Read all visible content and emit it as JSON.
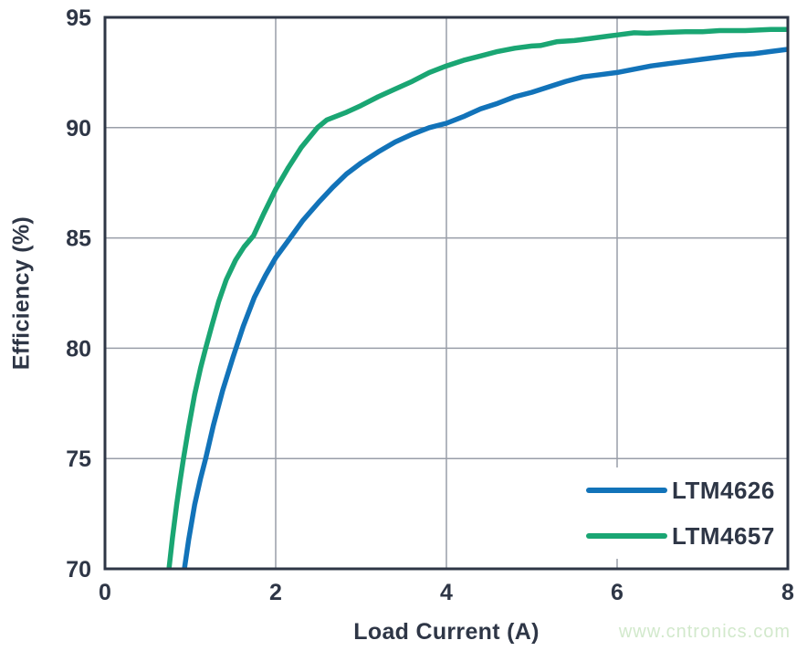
{
  "watermark": {
    "text": "www.cntronics.com",
    "color": "#d2e9cc"
  },
  "colors": {
    "axis_border": "#2e3646",
    "tick_label": "#2e3646",
    "gridline": "#999ea8",
    "background": "#ffffff",
    "legend_box": "#ffffff",
    "series_blue": "#1273b9",
    "series_green": "#1aa673"
  },
  "chart_data": {
    "type": "line",
    "title": "",
    "xlabel": "Load Current (A)",
    "ylabel": "Efficiency (%)",
    "xlim": [
      0,
      8
    ],
    "ylim": [
      70,
      95
    ],
    "xticks": [
      0,
      2,
      4,
      6,
      8
    ],
    "yticks": [
      70,
      75,
      80,
      85,
      90,
      95
    ],
    "grid": true,
    "legend_position": "lower right",
    "series": [
      {
        "name": "LTM4626",
        "color": "#1273b9",
        "points": [
          [
            0.93,
            70
          ],
          [
            0.98,
            71.3
          ],
          [
            1.05,
            72.9
          ],
          [
            1.12,
            74.1
          ],
          [
            1.18,
            75
          ],
          [
            1.27,
            76.5
          ],
          [
            1.38,
            78.1
          ],
          [
            1.5,
            79.6
          ],
          [
            1.62,
            81
          ],
          [
            1.75,
            82.3
          ],
          [
            1.88,
            83.3
          ],
          [
            2,
            84.1
          ],
          [
            2.17,
            85
          ],
          [
            2.32,
            85.8
          ],
          [
            2.5,
            86.6
          ],
          [
            2.67,
            87.3
          ],
          [
            2.83,
            87.9
          ],
          [
            3,
            88.4
          ],
          [
            3.2,
            88.9
          ],
          [
            3.4,
            89.35
          ],
          [
            3.6,
            89.7
          ],
          [
            3.8,
            90
          ],
          [
            4,
            90.2
          ],
          [
            4.2,
            90.5
          ],
          [
            4.4,
            90.85
          ],
          [
            4.6,
            91.1
          ],
          [
            4.8,
            91.4
          ],
          [
            5,
            91.6
          ],
          [
            5.2,
            91.85
          ],
          [
            5.4,
            92.1
          ],
          [
            5.6,
            92.3
          ],
          [
            5.8,
            92.4
          ],
          [
            6,
            92.5
          ],
          [
            6.2,
            92.65
          ],
          [
            6.4,
            92.8
          ],
          [
            6.6,
            92.9
          ],
          [
            6.8,
            93
          ],
          [
            7,
            93.1
          ],
          [
            7.2,
            93.2
          ],
          [
            7.4,
            93.3
          ],
          [
            7.6,
            93.35
          ],
          [
            7.8,
            93.45
          ],
          [
            8,
            93.55
          ]
        ]
      },
      {
        "name": "LTM4657",
        "color": "#1aa673",
        "points": [
          [
            0.75,
            70
          ],
          [
            0.79,
            71.4
          ],
          [
            0.84,
            72.9
          ],
          [
            0.88,
            74
          ],
          [
            0.92,
            75
          ],
          [
            0.98,
            76.4
          ],
          [
            1.05,
            77.9
          ],
          [
            1.12,
            79.1
          ],
          [
            1.18,
            80
          ],
          [
            1.25,
            81
          ],
          [
            1.33,
            82.1
          ],
          [
            1.42,
            83.1
          ],
          [
            1.53,
            84
          ],
          [
            1.63,
            84.6
          ],
          [
            1.74,
            85.1
          ],
          [
            1.86,
            86.1
          ],
          [
            2,
            87.2
          ],
          [
            2.15,
            88.2
          ],
          [
            2.3,
            89.1
          ],
          [
            2.49,
            90
          ],
          [
            2.6,
            90.35
          ],
          [
            2.83,
            90.7
          ],
          [
            3,
            91
          ],
          [
            3.2,
            91.4
          ],
          [
            3.4,
            91.75
          ],
          [
            3.6,
            92.1
          ],
          [
            3.8,
            92.5
          ],
          [
            4,
            92.8
          ],
          [
            4.2,
            93.05
          ],
          [
            4.4,
            93.25
          ],
          [
            4.6,
            93.45
          ],
          [
            4.8,
            93.6
          ],
          [
            5,
            93.7
          ],
          [
            5.1,
            93.72
          ],
          [
            5.3,
            93.9
          ],
          [
            5.5,
            93.95
          ],
          [
            5.7,
            94.05
          ],
          [
            5.9,
            94.15
          ],
          [
            6,
            94.2
          ],
          [
            6.2,
            94.3
          ],
          [
            6.35,
            94.28
          ],
          [
            6.6,
            94.32
          ],
          [
            6.8,
            94.35
          ],
          [
            7,
            94.35
          ],
          [
            7.2,
            94.4
          ],
          [
            7.5,
            94.4
          ],
          [
            7.8,
            94.45
          ],
          [
            8,
            94.45
          ]
        ]
      }
    ]
  }
}
